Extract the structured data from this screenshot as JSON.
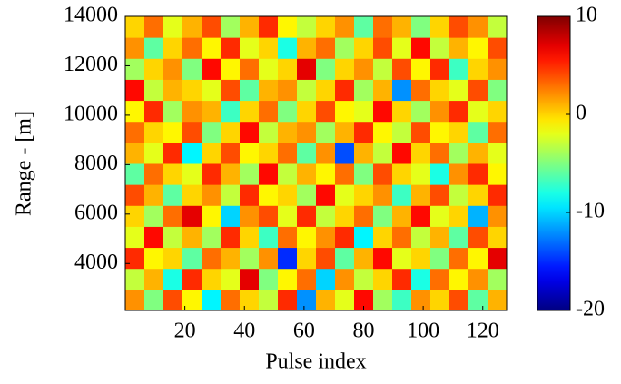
{
  "chart_data": {
    "type": "heatmap",
    "colormap": "jet",
    "x_label": "Pulse index",
    "y_label": "Range - [m]",
    "xlim": [
      0,
      128
    ],
    "xticks": [
      20,
      40,
      60,
      80,
      100,
      120
    ],
    "ylim": [
      2100,
      14000
    ],
    "yticks": [
      4000,
      6000,
      8000,
      10000,
      12000,
      14000
    ],
    "clim": [
      -20,
      10
    ],
    "cticks": [
      10,
      0,
      -10,
      -20
    ],
    "z": [
      [
        2,
        -5,
        4,
        -1,
        -9,
        3,
        0,
        -3,
        5,
        -12,
        1,
        -2,
        6,
        -4,
        -7,
        2,
        0,
        4,
        -6,
        1
      ],
      [
        -3,
        1,
        -8,
        5,
        0,
        -2,
        7,
        -5,
        -1,
        3,
        -10,
        2,
        -3,
        0,
        5,
        -8,
        3,
        -1,
        2,
        -4
      ],
      [
        5,
        -1,
        0,
        -6,
        3,
        1,
        -4,
        2,
        -15,
        0,
        4,
        -6,
        1,
        6,
        -2,
        0,
        -5,
        3,
        -1,
        7
      ],
      [
        -2,
        6,
        -3,
        1,
        -4,
        5,
        0,
        -7,
        3,
        -1,
        2,
        5,
        -9,
        0,
        3,
        -3,
        1,
        -6,
        4,
        0
      ],
      [
        0,
        -4,
        3,
        7,
        -1,
        -10,
        2,
        4,
        -2,
        5,
        -3,
        0,
        3,
        -5,
        1,
        6,
        -2,
        0,
        -11,
        2
      ],
      [
        4,
        1,
        -6,
        0,
        2,
        -3,
        5,
        -1,
        0,
        -4,
        6,
        -2,
        0,
        2,
        -7,
        1,
        4,
        -3,
        0,
        5
      ],
      [
        -6,
        3,
        0,
        -2,
        5,
        1,
        -4,
        6,
        -3,
        1,
        -1,
        3,
        -5,
        4,
        0,
        -2,
        -8,
        2,
        5,
        -1
      ],
      [
        1,
        -2,
        5,
        -9,
        0,
        4,
        -1,
        0,
        3,
        -6,
        2,
        -14,
        1,
        -3,
        6,
        0,
        3,
        -4,
        1,
        -2
      ],
      [
        3,
        0,
        -1,
        4,
        -5,
        0,
        6,
        -3,
        1,
        2,
        -4,
        1,
        5,
        -1,
        -3,
        4,
        -1,
        0,
        -6,
        3
      ],
      [
        -1,
        5,
        -4,
        2,
        1,
        -7,
        0,
        3,
        -5,
        0,
        4,
        -1,
        -2,
        6,
        0,
        -4,
        2,
        5,
        -2,
        0
      ],
      [
        6,
        -3,
        1,
        0,
        -2,
        4,
        -6,
        1,
        2,
        -3,
        0,
        5,
        -4,
        1,
        -12,
        3,
        0,
        -2,
        4,
        -5
      ],
      [
        -4,
        0,
        2,
        -5,
        6,
        -1,
        3,
        -2,
        0,
        7,
        -5,
        0,
        2,
        -3,
        4,
        -1,
        5,
        -7,
        0,
        2
      ],
      [
        2,
        -6,
        0,
        3,
        -1,
        5,
        -2,
        0,
        -8,
        1,
        3,
        -4,
        0,
        4,
        -2,
        6,
        -3,
        1,
        -1,
        4
      ],
      [
        0,
        3,
        -2,
        1,
        4,
        -4,
        1,
        5,
        -1,
        -3,
        0,
        2,
        -6,
        3,
        1,
        -5,
        0,
        4,
        2,
        -3
      ]
    ]
  }
}
